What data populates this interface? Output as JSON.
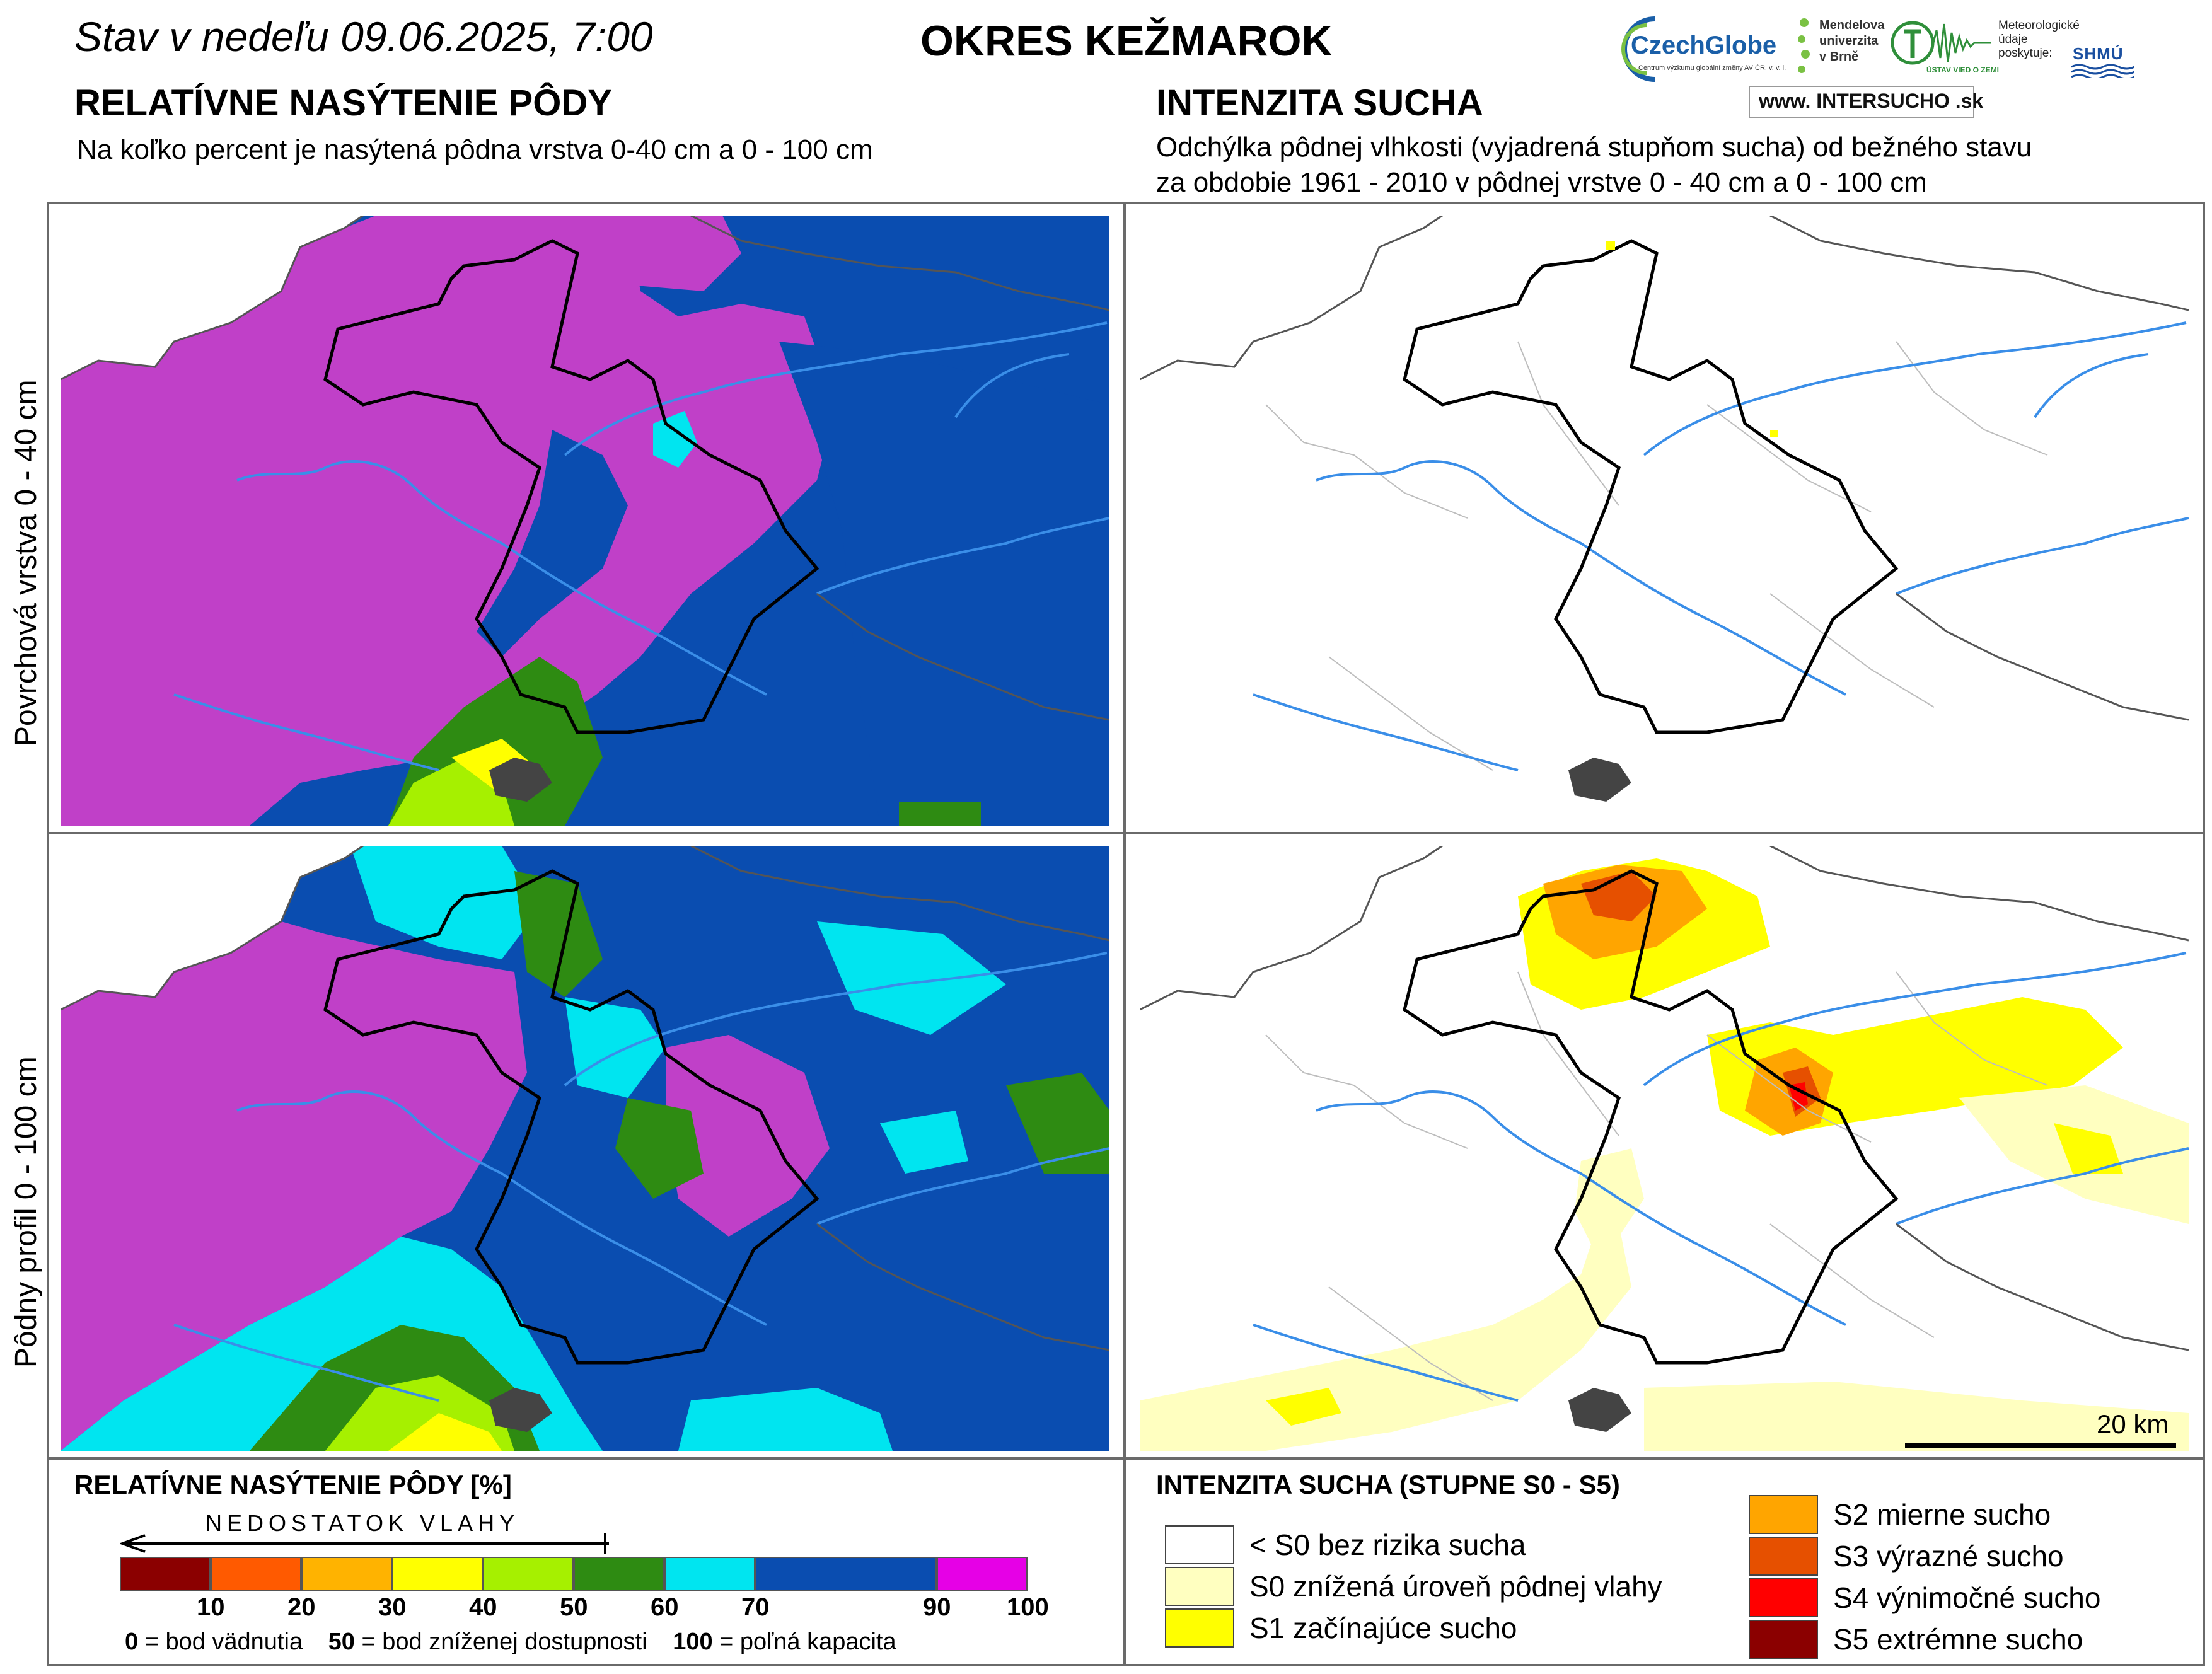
{
  "header": {
    "date_title": "Stav v nedeľu 09.06.2025, 7:00",
    "district": "OKRES  KEŽMAROK",
    "left_heading": "RELATÍVNE NASÝTENIE PÔDY",
    "left_sub": "Na koľko percent je nasýtená pôdna vrstva 0-40 cm a 0 - 100 cm",
    "right_heading": "INTENZITA SUCHA",
    "right_sub_1": "Odchýlka pôdnej vlhkosti (vyjadrená stupňom sucha) od bežného stavu",
    "right_sub_2": "za obdobie 1961 - 2010 v pôdnej vrstve 0 - 40 cm a 0 - 100 cm"
  },
  "logos": {
    "czechglobe": "CzechGlobe",
    "czechglobe_small": "Centrum výzkumu globální změny AV ČR, v. v. i.",
    "mendelu": "Mendelova univerzita v Brně",
    "ustav": "ÚSTAV VIED O ZEMI",
    "meteo": "Meteorologické údaje poskytuje:",
    "shmu": "SHMÚ",
    "intersucho": "www. INTERSUCHO .sk"
  },
  "rows": {
    "top_label": "Povrchová vrstva 0 - 40 cm",
    "bottom_label": "Pôdny profil 0 - 100 cm"
  },
  "scale_bar": "20 km",
  "legend_left": {
    "title": "RELATÍVNE NASÝTENIE PÔDY [%]",
    "arrow_label": "NEDOSTATOK VLAHY",
    "colors": [
      "#8b0000",
      "#ff5a00",
      "#ffb300",
      "#ffff00",
      "#a6f000",
      "#2e8b12",
      "#00e5f0",
      "#0a4db0",
      "#e600e6"
    ],
    "ticks": [
      "10",
      "20",
      "30",
      "40",
      "50",
      "60",
      "70",
      "90",
      "100"
    ],
    "note": [
      {
        "value": "0",
        "text": " = bod vädnutia"
      },
      {
        "value": "50",
        "text": " = bod zníženej dostupnosti"
      },
      {
        "value": "100",
        "text": " = poľná kapacita"
      }
    ]
  },
  "legend_right": {
    "title": "INTENZITA SUCHA (STUPNE S0 - S5)",
    "items": [
      {
        "color": "#ffffff",
        "label": "< S0 bez rizika sucha"
      },
      {
        "color": "#ffffc0",
        "label": "S0 znížená úroveň pôdnej vlahy"
      },
      {
        "color": "#ffff00",
        "label": "S1 začínajúce sucho"
      },
      {
        "color": "#ffa500",
        "label": "S2 mierne sucho"
      },
      {
        "color": "#e65000",
        "label": "S3 výrazné sucho"
      },
      {
        "color": "#ff0000",
        "label": "S4 výnimočné sucho"
      },
      {
        "color": "#8b0000",
        "label": "S5 extrémne sucho"
      }
    ]
  }
}
